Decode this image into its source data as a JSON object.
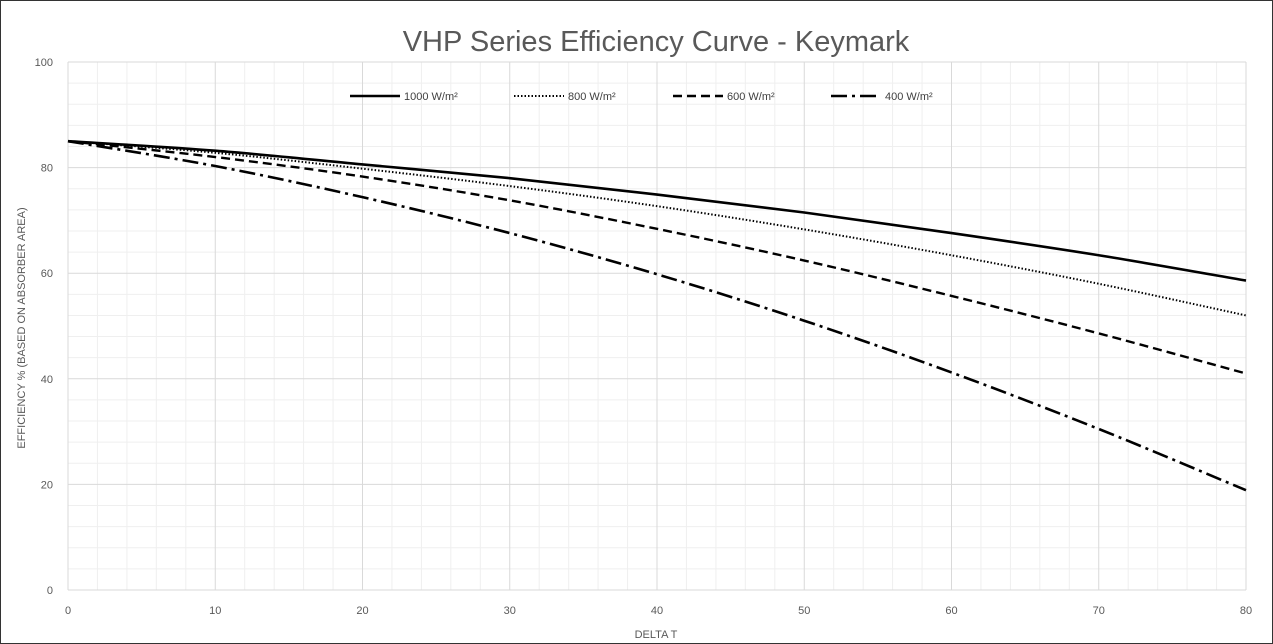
{
  "chart_data": {
    "type": "line",
    "title": "VHP Series Efficiency Curve - Keymark",
    "xlabel": "DELTA T",
    "ylabel": "EFFICIENCY % (BASED ON ABSORBER AREA)",
    "xlim": [
      0,
      80
    ],
    "ylim": [
      0,
      100
    ],
    "x_ticks": [
      "0",
      "10",
      "20",
      "30",
      "40",
      "50",
      "60",
      "70",
      "80"
    ],
    "y_ticks": [
      "0",
      "20",
      "40",
      "60",
      "80",
      "100"
    ],
    "grid": true,
    "legend_position": "top",
    "x": [
      0,
      10,
      20,
      30,
      40,
      50,
      60,
      70,
      80
    ],
    "series": [
      {
        "name": "1000 W/m²",
        "style": "solid",
        "values": [
          85,
          83.2,
          80.6,
          78.0,
          74.9,
          71.5,
          67.6,
          63.4,
          58.6
        ]
      },
      {
        "name": "800 W/m²",
        "style": "dotted",
        "values": [
          85,
          82.8,
          79.8,
          76.5,
          72.7,
          68.3,
          63.4,
          58.0,
          52.0
        ]
      },
      {
        "name": "600 W/m²",
        "style": "dashed",
        "values": [
          85,
          82.0,
          78.3,
          73.8,
          68.4,
          62.4,
          55.7,
          48.6,
          41.0
        ]
      },
      {
        "name": "400 W/m²",
        "style": "dashdot",
        "values": [
          85,
          80.3,
          74.4,
          67.6,
          59.8,
          51.0,
          41.2,
          30.5,
          18.9
        ]
      }
    ],
    "colors": {
      "line": "#000000",
      "major_grid": "#d9d9d9",
      "minor_grid": "#efefef",
      "text": "#595959"
    }
  }
}
